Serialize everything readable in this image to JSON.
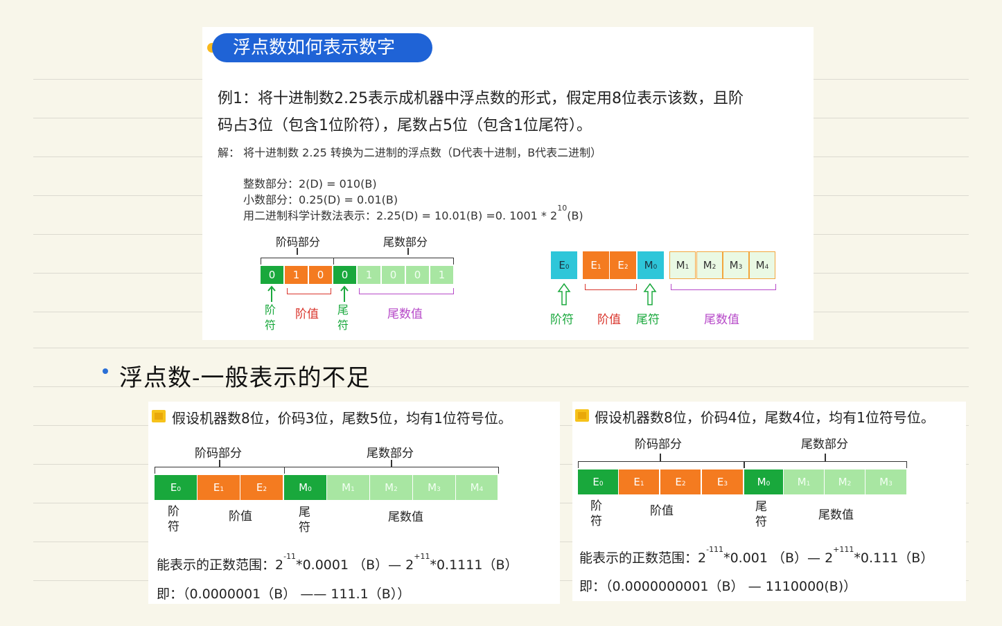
{
  "title": "浮点数如何表示数字",
  "example": {
    "line1": "例1：将十进制数2.25表示成机器中浮点数的形式，假定用8位表示该数，且阶",
    "line2": "码占3位（包含1位阶符），尾数占5位（包含1位尾符）。",
    "solution": "解：  将十进制数 2.25 转换为二进制的浮点数（D代表十进制，B代表二进制）",
    "integer_part": "整数部分：2(D) = 010(B)",
    "fraction_part": "小数部分：0.25(D) = 0.01(B)",
    "sci_prefix": "用二进制科学计数法表示：2.25(D) = 10.01(B) =0.  1001 * 2",
    "sci_exp": "10",
    "sci_suffix": "(B)"
  },
  "diagram1": {
    "exp_label": "阶码部分",
    "mant_label": "尾数部分",
    "bits": [
      "0",
      "1",
      "0",
      "0",
      "1",
      "0",
      "0",
      "1"
    ],
    "sign1": "阶符",
    "exp_value": "阶值",
    "sign2": "尾符",
    "mant_value": "尾数值"
  },
  "diagram2": {
    "cells": [
      "E",
      "E",
      "E",
      "M",
      "M",
      "M",
      "M",
      "M"
    ],
    "subs": [
      "0",
      "1",
      "2",
      "0",
      "1",
      "2",
      "3",
      "4"
    ],
    "sign1": "阶符",
    "exp_value": "阶值",
    "sign2": "尾符",
    "mant_value": "尾数值"
  },
  "note": "浮点数-一般表示的不足",
  "bottom_left": {
    "header": "假设机器数8位，价码3位，尾数5位，均有1位符号位。",
    "exp_label": "阶码部分",
    "mant_label": "尾数部分",
    "cells": [
      "E",
      "E",
      "E",
      "M",
      "M",
      "M",
      "M",
      "M"
    ],
    "subs": [
      "0",
      "1",
      "2",
      "0",
      "1",
      "2",
      "3",
      "4"
    ],
    "sign1": "阶符",
    "exp_value": "阶值",
    "sign2": "尾符",
    "mant_value": "尾数值",
    "range_a": "能表示的正数范围：2",
    "range_a_exp": "-11",
    "range_b": "*0.0001  （B）— 2",
    "range_b_exp": "+11",
    "range_c": "*0.1111（B）",
    "equals": "即：（0.0000001（B）    ——    111.1（B））"
  },
  "bottom_right": {
    "header": "假设机器数8位，价码4位，尾数4位，均有1位符号位。",
    "exp_label": "阶码部分",
    "mant_label": "尾数部分",
    "cells": [
      "E",
      "E",
      "E",
      "E",
      "M",
      "M",
      "M",
      "M"
    ],
    "subs": [
      "0",
      "1",
      "2",
      "3",
      "0",
      "1",
      "2",
      "3"
    ],
    "sign1": "阶符",
    "exp_value": "阶值",
    "sign2": "尾符",
    "mant_value": "尾数值",
    "range_a": "能表示的正数范围：2",
    "range_a_exp": "-111",
    "range_b": "*0.001  （B）—  2",
    "range_b_exp": "+111",
    "range_c": "*0.111（B）",
    "equals": "即：（0.0000000001（B）    — 1110000(B)）"
  },
  "colors": {
    "green": "#19a83c",
    "orange": "#f47b20",
    "light_green": "#a8e6a2",
    "cyan": "#2ec6d9",
    "title_blue": "#1f63d6",
    "label_red": "#d9342b",
    "label_purple": "#b648c8"
  }
}
